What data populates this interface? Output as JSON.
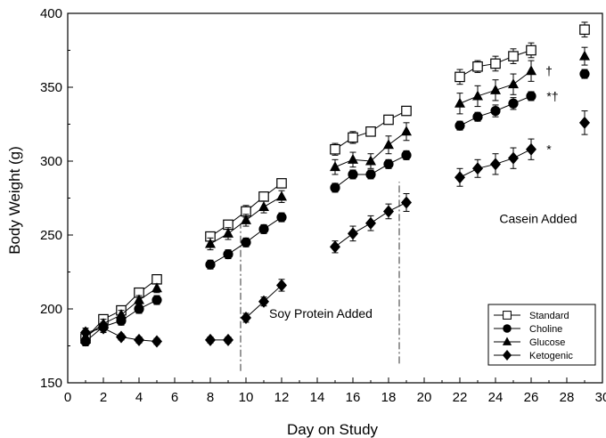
{
  "chart_data": {
    "type": "line",
    "title": "",
    "xlabel": "Day on Study",
    "ylabel": "Body Weight (g)",
    "xlim": [
      0,
      30
    ],
    "ylim": [
      150,
      400
    ],
    "xticks": [
      0,
      2,
      4,
      6,
      8,
      10,
      12,
      14,
      16,
      18,
      20,
      22,
      24,
      26,
      28,
      30
    ],
    "yticks": [
      150,
      200,
      250,
      300,
      350,
      400
    ],
    "grid": false,
    "legend_position": "bottom-right",
    "series": [
      {
        "name": "Standard",
        "marker": "open-square",
        "color": "#000000",
        "segments": [
          [
            [
              1,
              180,
              4
            ],
            [
              2,
              193,
              3
            ],
            [
              3,
              199,
              3
            ],
            [
              4,
              211,
              3
            ],
            [
              5,
              220,
              3
            ]
          ],
          [
            [
              8,
              249,
              3
            ],
            [
              9,
              257,
              3
            ],
            [
              10,
              266,
              4
            ],
            [
              11,
              276,
              3
            ],
            [
              12,
              285,
              3
            ]
          ],
          [
            [
              15,
              308,
              4
            ],
            [
              16,
              316,
              4
            ],
            [
              17,
              320,
              3
            ],
            [
              18,
              328,
              3
            ],
            [
              19,
              334,
              3
            ]
          ],
          [
            [
              22,
              357,
              5
            ],
            [
              23,
              364,
              4
            ],
            [
              24,
              366,
              5
            ],
            [
              25,
              371,
              5
            ],
            [
              26,
              375,
              5
            ]
          ],
          [
            [
              29,
              389,
              5
            ]
          ]
        ]
      },
      {
        "name": "Choline",
        "marker": "filled-circle",
        "color": "#000000",
        "segments": [
          [
            [
              1,
              178,
              3
            ],
            [
              2,
              188,
              3
            ],
            [
              3,
              192,
              3
            ],
            [
              4,
              200,
              3
            ],
            [
              5,
              206,
              3
            ]
          ],
          [
            [
              8,
              230,
              3
            ],
            [
              9,
              237,
              3
            ],
            [
              10,
              245,
              3
            ],
            [
              11,
              254,
              3
            ],
            [
              12,
              262,
              3
            ]
          ],
          [
            [
              15,
              282,
              3
            ],
            [
              16,
              291,
              3
            ],
            [
              17,
              291,
              3
            ],
            [
              18,
              298,
              3
            ],
            [
              19,
              304,
              3
            ]
          ],
          [
            [
              22,
              324,
              3
            ],
            [
              23,
              330,
              3
            ],
            [
              24,
              334,
              4
            ],
            [
              25,
              339,
              4
            ],
            [
              26,
              344,
              3
            ]
          ],
          [
            [
              29,
              359,
              3
            ]
          ]
        ]
      },
      {
        "name": "Glucose",
        "marker": "filled-triangle",
        "color": "#000000",
        "segments": [
          [
            [
              1,
              181,
              3
            ],
            [
              2,
              190,
              3
            ],
            [
              3,
              196,
              3
            ],
            [
              4,
              206,
              3
            ],
            [
              5,
              214,
              3
            ]
          ],
          [
            [
              8,
              244,
              4
            ],
            [
              9,
              251,
              4
            ],
            [
              10,
              260,
              4
            ],
            [
              11,
              269,
              4
            ],
            [
              12,
              276,
              4
            ]
          ],
          [
            [
              15,
              296,
              5
            ],
            [
              16,
              301,
              5
            ],
            [
              17,
              300,
              5
            ],
            [
              18,
              311,
              6
            ],
            [
              19,
              320,
              6
            ]
          ],
          [
            [
              22,
              339,
              7
            ],
            [
              23,
              344,
              7
            ],
            [
              24,
              348,
              7
            ],
            [
              25,
              352,
              7
            ],
            [
              26,
              361,
              7
            ]
          ],
          [
            [
              29,
              371,
              6
            ]
          ]
        ]
      },
      {
        "name": "Ketogenic",
        "marker": "filled-diamond",
        "color": "#000000",
        "segments": [
          [
            [
              1,
              184,
              3
            ],
            [
              2,
              187,
              3
            ],
            [
              3,
              181,
              2
            ],
            [
              4,
              179,
              2
            ],
            [
              5,
              178,
              2
            ]
          ],
          [
            [
              8,
              179,
              2
            ],
            [
              9,
              179,
              2
            ]
          ],
          [
            [
              10,
              194,
              3
            ],
            [
              11,
              205,
              3
            ],
            [
              12,
              216,
              4
            ]
          ],
          [
            [
              15,
              242,
              4
            ],
            [
              16,
              251,
              5
            ],
            [
              17,
              258,
              5
            ],
            [
              18,
              266,
              5
            ],
            [
              19,
              272,
              6
            ]
          ],
          [
            [
              22,
              289,
              6
            ],
            [
              23,
              295,
              6
            ],
            [
              24,
              298,
              7
            ],
            [
              25,
              302,
              7
            ],
            [
              26,
              308,
              7
            ]
          ],
          [
            [
              29,
              326,
              8
            ]
          ]
        ]
      }
    ],
    "vertical_markers": [
      {
        "x": 9.7,
        "y_from": 158,
        "y_to": 258
      },
      {
        "x": 18.6,
        "y_from": 163,
        "y_to": 286
      }
    ],
    "annotations": [
      {
        "text": "Soy Protein Added",
        "x": 14.2,
        "y": 197
      },
      {
        "text": "Casein Added",
        "x": 26.4,
        "y": 261
      },
      {
        "text": "†",
        "x": 27.0,
        "y": 361
      },
      {
        "text": "*†",
        "x": 27.2,
        "y": 344
      },
      {
        "text": "*",
        "x": 27.0,
        "y": 308
      }
    ]
  }
}
